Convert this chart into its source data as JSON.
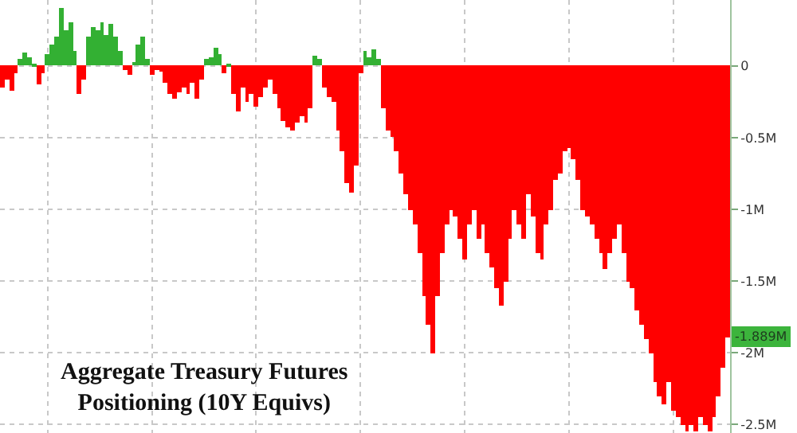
{
  "chart_data": {
    "type": "bar",
    "title": "Aggregate Treasury Futures Positioning (10Y Equivs)",
    "categories": [
      null,
      null,
      null,
      null,
      null,
      null,
      null,
      null,
      null,
      null,
      null,
      null,
      null,
      null,
      null,
      null,
      null,
      null,
      null,
      null,
      null,
      null,
      null,
      null,
      null,
      null,
      null,
      null,
      null,
      null,
      null,
      null,
      null,
      null,
      null,
      null,
      null,
      null,
      null,
      null,
      null,
      null,
      null,
      null,
      null,
      null,
      null,
      null,
      null,
      null,
      null,
      null,
      null,
      null,
      null,
      null,
      null,
      null,
      null,
      null,
      null,
      null,
      null,
      null,
      null,
      null,
      null,
      null,
      null,
      null,
      null,
      null,
      null,
      null,
      null,
      null,
      null,
      null,
      null,
      null,
      null,
      null,
      null,
      null,
      null,
      null,
      null,
      null,
      null,
      null,
      null,
      null,
      null,
      null,
      null,
      null,
      null,
      null,
      null,
      null,
      null,
      null,
      null,
      null,
      null,
      null,
      null,
      null,
      null,
      null,
      null,
      null,
      null,
      null,
      null,
      null,
      null,
      null,
      null,
      null,
      null,
      null,
      null,
      null,
      null,
      null,
      null,
      null,
      null,
      null,
      null,
      null,
      null,
      null,
      null,
      null,
      null,
      null,
      null,
      null,
      null,
      null,
      null,
      null,
      null,
      null,
      null,
      null,
      null,
      null,
      null,
      null,
      null,
      null,
      null,
      null,
      null,
      null,
      null,
      null,
      null
    ],
    "values": [
      -0.15,
      -0.1,
      -0.17,
      -0.05,
      0.05,
      0.09,
      0.06,
      0.02,
      -0.13,
      -0.05,
      0.08,
      0.15,
      0.2,
      0.4,
      0.25,
      0.3,
      0.1,
      -0.2,
      -0.1,
      0.2,
      0.27,
      0.25,
      0.3,
      0.22,
      0.29,
      0.2,
      0.1,
      -0.03,
      -0.06,
      0.03,
      0.15,
      0.2,
      0.05,
      -0.06,
      -0.03,
      -0.04,
      -0.12,
      -0.2,
      -0.23,
      -0.18,
      -0.15,
      -0.2,
      -0.12,
      -0.23,
      -0.1,
      0.05,
      0.06,
      0.13,
      0.08,
      -0.05,
      0.02,
      -0.2,
      -0.32,
      -0.15,
      -0.25,
      -0.2,
      -0.28,
      -0.22,
      -0.15,
      -0.1,
      -0.2,
      -0.3,
      -0.38,
      -0.43,
      -0.45,
      -0.4,
      -0.35,
      -0.4,
      -0.3,
      0.07,
      0.05,
      -0.15,
      -0.22,
      -0.25,
      -0.45,
      -0.6,
      -0.82,
      -0.88,
      -0.7,
      -0.05,
      0.1,
      0.06,
      0.12,
      0.05,
      -0.3,
      -0.45,
      -0.5,
      -0.6,
      -0.75,
      -0.9,
      -1.0,
      -1.1,
      -1.3,
      -1.6,
      -1.8,
      -2.0,
      -1.6,
      -1.3,
      -1.1,
      -1.0,
      -1.05,
      -1.2,
      -1.35,
      -1.1,
      -1.0,
      -1.2,
      -1.1,
      -1.3,
      -1.4,
      -1.55,
      -1.67,
      -1.5,
      -1.2,
      -1.0,
      -1.1,
      -1.2,
      -0.9,
      -1.05,
      -1.3,
      -1.35,
      -1.1,
      -1.0,
      -0.8,
      -0.75,
      -0.6,
      -0.57,
      -0.65,
      -0.8,
      -1.0,
      -1.05,
      -1.1,
      -1.2,
      -1.3,
      -1.42,
      -1.3,
      -1.2,
      -1.1,
      -1.3,
      -1.5,
      -1.55,
      -1.7,
      -1.8,
      -1.9,
      -2.0,
      -2.2,
      -2.3,
      -2.36,
      -2.2,
      -2.4,
      -2.45,
      -2.5,
      -2.55,
      -2.5,
      -2.55,
      -2.45,
      -2.5,
      -2.55,
      -2.45,
      -2.3,
      -2.1,
      -1.889
    ],
    "colors": [
      "#ff0000",
      "#ff0000",
      "#ff0000",
      "#ff0000",
      "#33b033",
      "#33b033",
      "#33b033",
      "#33b033",
      "#ff0000",
      "#ff0000",
      "#33b033",
      "#33b033",
      "#33b033",
      "#33b033",
      "#33b033",
      "#33b033",
      "#33b033",
      "#ff0000",
      "#ff0000",
      "#33b033",
      "#33b033",
      "#33b033",
      "#33b033",
      "#33b033",
      "#33b033",
      "#33b033",
      "#33b033",
      "#ff0000",
      "#ff0000",
      "#33b033",
      "#33b033",
      "#33b033",
      "#33b033",
      "#ff0000",
      "#ff0000",
      "#ff0000",
      "#ff0000",
      "#ff0000",
      "#ff0000",
      "#ff0000",
      "#ff0000",
      "#ff0000",
      "#ff0000",
      "#ff0000",
      "#ff0000",
      "#33b033",
      "#33b033",
      "#33b033",
      "#33b033",
      "#ff0000",
      "#33b033",
      "#ff0000",
      "#ff0000",
      "#ff0000",
      "#ff0000",
      "#ff0000",
      "#ff0000",
      "#ff0000",
      "#ff0000",
      "#ff0000",
      "#ff0000",
      "#ff0000",
      "#ff0000",
      "#ff0000",
      "#ff0000",
      "#ff0000",
      "#ff0000",
      "#ff0000",
      "#ff0000",
      "#33b033",
      "#33b033",
      "#ff0000",
      "#ff0000",
      "#ff0000",
      "#ff0000",
      "#ff0000",
      "#ff0000",
      "#ff0000",
      "#ff0000",
      "#ff0000",
      "#33b033",
      "#33b033",
      "#33b033",
      "#33b033",
      "#ff0000",
      "#ff0000",
      "#ff0000",
      "#ff0000",
      "#ff0000",
      "#ff0000",
      "#ff0000",
      "#ff0000",
      "#ff0000",
      "#ff0000",
      "#ff0000",
      "#ff0000",
      "#ff0000",
      "#ff0000",
      "#ff0000",
      "#ff0000",
      "#ff0000",
      "#ff0000",
      "#ff0000",
      "#ff0000",
      "#ff0000",
      "#ff0000",
      "#ff0000",
      "#ff0000",
      "#ff0000",
      "#ff0000",
      "#ff0000",
      "#ff0000",
      "#ff0000",
      "#ff0000",
      "#ff0000",
      "#ff0000",
      "#ff0000",
      "#ff0000",
      "#ff0000",
      "#ff0000",
      "#ff0000",
      "#ff0000",
      "#ff0000",
      "#ff0000",
      "#ff0000",
      "#ff0000",
      "#ff0000",
      "#ff0000",
      "#ff0000",
      "#ff0000",
      "#ff0000",
      "#ff0000",
      "#ff0000",
      "#ff0000",
      "#ff0000",
      "#ff0000",
      "#ff0000",
      "#ff0000",
      "#ff0000",
      "#ff0000",
      "#ff0000",
      "#ff0000",
      "#ff0000",
      "#ff0000",
      "#ff0000",
      "#ff0000",
      "#ff0000",
      "#ff0000",
      "#ff0000",
      "#ff0000",
      "#ff0000",
      "#ff0000",
      "#ff0000",
      "#ff0000",
      "#ff0000",
      "#ff0000",
      "#ff0000",
      "#ff0000",
      "#ff0000",
      "#ff0000",
      "#ff0000"
    ],
    "annotations": [
      {
        "text": "-1.889M",
        "y": -1.889
      }
    ],
    "ylim": [
      -2.56,
      0.46
    ],
    "yticks": [
      0,
      {
        "value": -0.5,
        "label": "-0.5M"
      },
      {
        "value": -1,
        "label": "-1M"
      },
      {
        "value": -1.5,
        "label": "-1.5M"
      },
      {
        "value": -2,
        "label": "-2M"
      },
      {
        "value": -2.5,
        "label": "-2.5M"
      }
    ],
    "grid": true,
    "legend": false
  }
}
